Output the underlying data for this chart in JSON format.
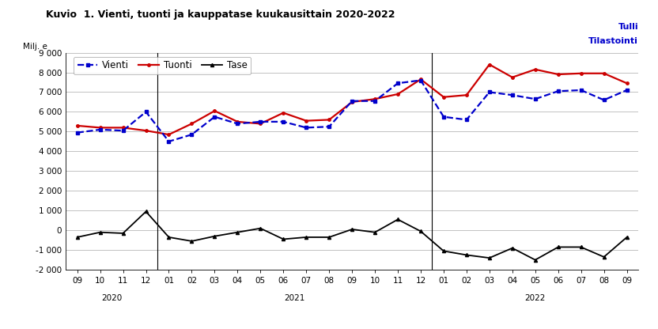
{
  "title": "Kuvio  1. Vienti, tuonti ja kauppatase kuukausittain 2020-2022",
  "watermark_line1": "Tulli",
  "watermark_line2": "Tilastointi",
  "ylabel": "Milj. e",
  "ylim": [
    -2000,
    9000
  ],
  "yticks": [
    -2000,
    -1000,
    0,
    1000,
    2000,
    3000,
    4000,
    5000,
    6000,
    7000,
    8000,
    9000
  ],
  "x_labels": [
    "09",
    "10",
    "11",
    "12",
    "01",
    "02",
    "03",
    "04",
    "05",
    "06",
    "07",
    "08",
    "09",
    "10",
    "11",
    "12",
    "01",
    "02",
    "03",
    "04",
    "05",
    "06",
    "07",
    "08",
    "09"
  ],
  "year_labels": [
    [
      "2020",
      1.5
    ],
    [
      "2021",
      9.5
    ],
    [
      "2022",
      20.0
    ]
  ],
  "year_dividers": [
    3.5,
    15.5
  ],
  "vienti": [
    4950,
    5100,
    5050,
    6000,
    4500,
    4850,
    5750,
    5400,
    5500,
    5500,
    5200,
    5250,
    6550,
    6550,
    7450,
    7600,
    5750,
    5600,
    7000,
    6850,
    6650,
    7050,
    7100,
    6600,
    7100
  ],
  "tuonti": [
    5300,
    5200,
    5200,
    5050,
    4850,
    5400,
    6050,
    5500,
    5400,
    5950,
    5550,
    5600,
    6500,
    6650,
    6900,
    7650,
    6750,
    6850,
    8400,
    7750,
    8150,
    7900,
    7950,
    7950,
    7450
  ],
  "tase": [
    -350,
    -100,
    -150,
    950,
    -350,
    -550,
    -300,
    -100,
    100,
    -450,
    -350,
    -350,
    50,
    -100,
    550,
    -50,
    -1050,
    -1250,
    -1400,
    -900,
    -1500,
    -850,
    -850,
    -1350,
    -350
  ],
  "vienti_color": "#0000cc",
  "tuonti_color": "#cc0000",
  "tase_color": "#000000",
  "background_color": "#ffffff",
  "grid_color": "#aaaaaa",
  "title_fontsize": 9,
  "axis_fontsize": 7.5,
  "legend_fontsize": 8.5,
  "watermark_fontsize": 8,
  "watermark_color": "#0000cc"
}
